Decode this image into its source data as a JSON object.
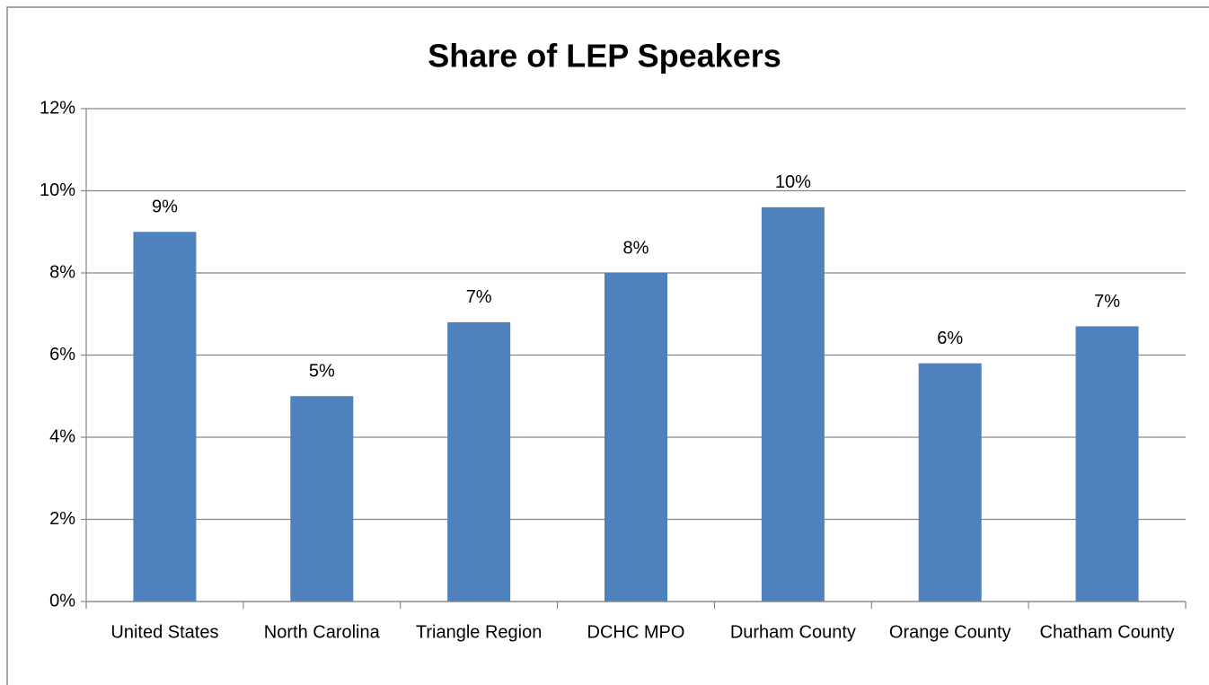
{
  "chart_data": {
    "type": "bar",
    "title": "Share of LEP Speakers",
    "categories": [
      "United States",
      "North Carolina",
      "Triangle Region",
      "DCHC MPO",
      "Durham County",
      "Orange County",
      "Chatham County"
    ],
    "values": [
      9.0,
      5.0,
      6.8,
      8.0,
      9.6,
      5.8,
      6.7
    ],
    "value_labels": [
      "9%",
      "5%",
      "7%",
      "8%",
      "10%",
      "6%",
      "7%"
    ],
    "color": "#4f81bd",
    "ylim": [
      0,
      12
    ],
    "yticks": [
      {
        "value": 0,
        "label": "0%"
      },
      {
        "value": 2,
        "label": "2%"
      },
      {
        "value": 4,
        "label": "4%"
      },
      {
        "value": 6,
        "label": "6%"
      },
      {
        "value": 8,
        "label": "8%"
      },
      {
        "value": 10,
        "label": "10%"
      },
      {
        "value": 12,
        "label": "12%"
      }
    ],
    "grid": true
  }
}
